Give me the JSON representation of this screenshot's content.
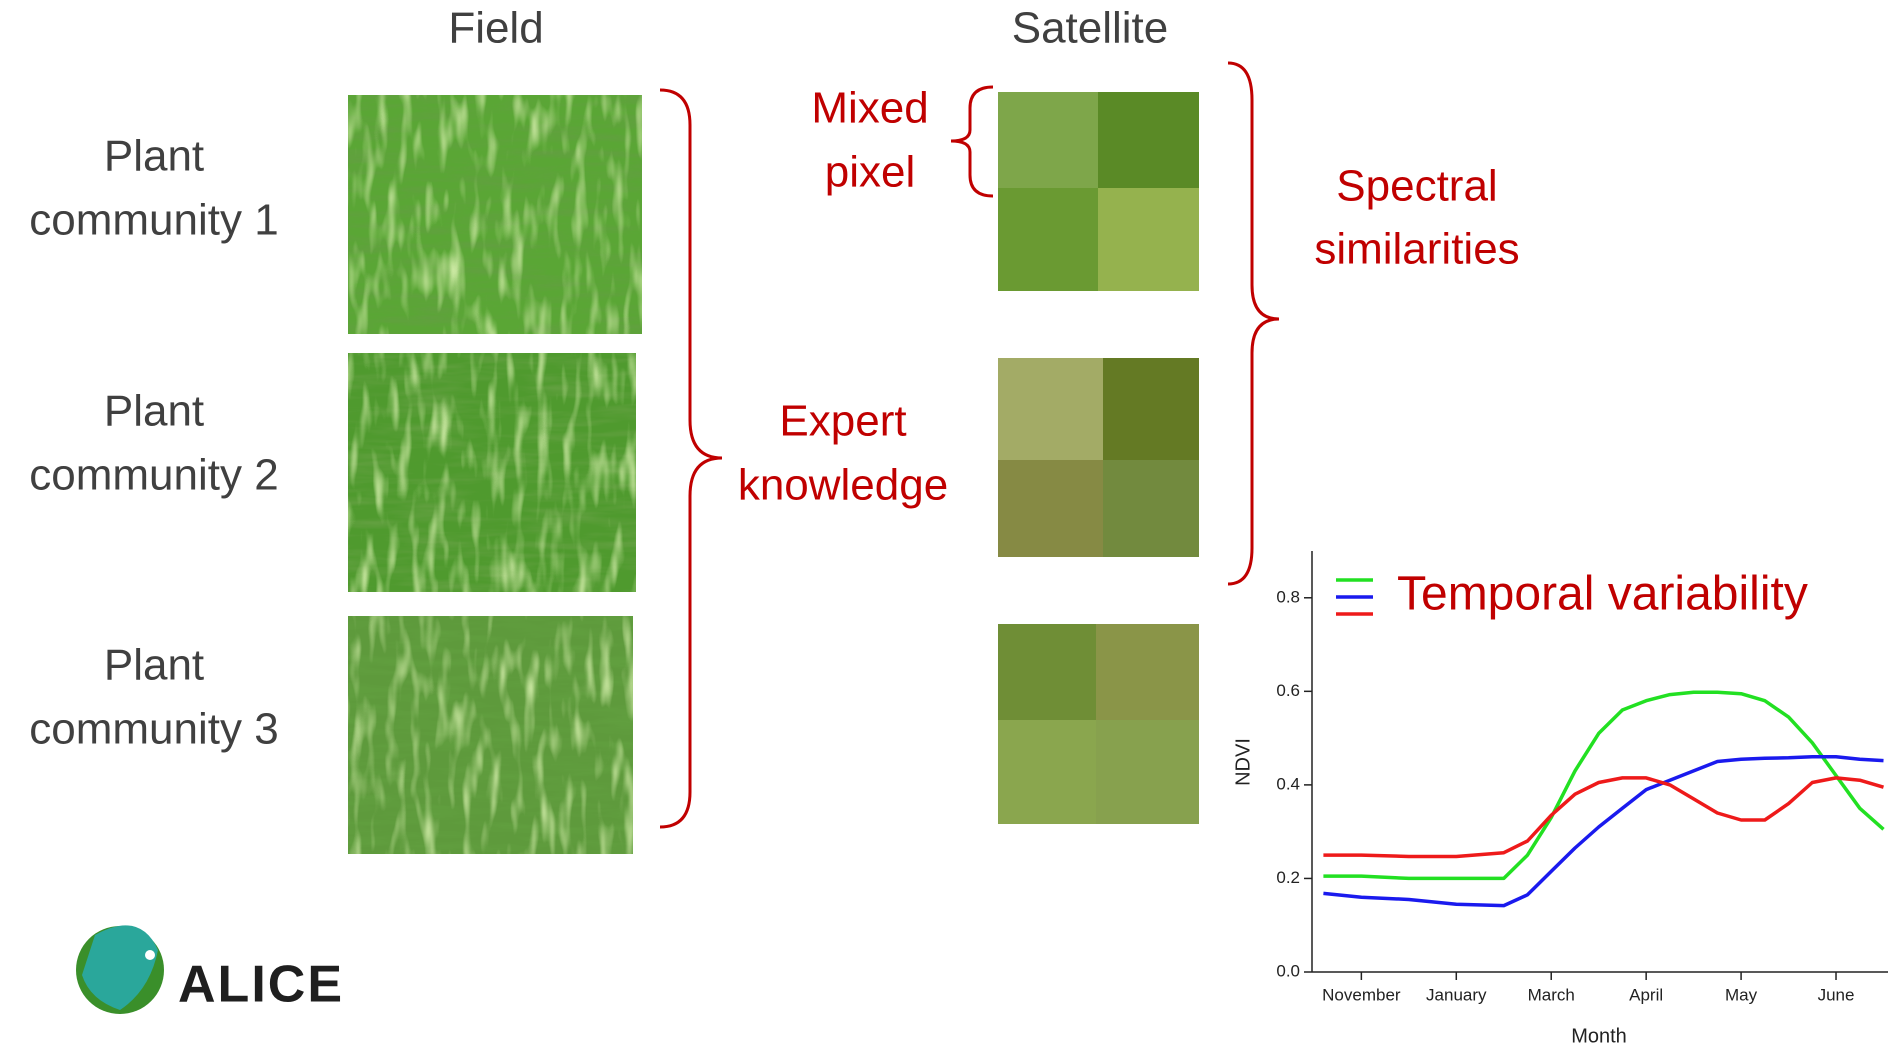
{
  "headers": {
    "field": "Field",
    "satellite": "Satellite"
  },
  "communities": [
    {
      "label": [
        "Plant",
        "community 1"
      ]
    },
    {
      "label": [
        "Plant",
        "community 2"
      ]
    },
    {
      "label": [
        "Plant",
        "community 3"
      ]
    }
  ],
  "annotations": {
    "expert": [
      "Expert",
      "knowledge"
    ],
    "mixed": [
      "Mixed",
      "pixel"
    ],
    "spectral": [
      "Spectral",
      "similarities"
    ]
  },
  "logo": {
    "text": "ALICE"
  },
  "chart_data": {
    "type": "line",
    "annotation": "Temporal variability",
    "xlabel": "Month",
    "ylabel": "NDVI",
    "xlim": [
      -0.52,
      5.53
    ],
    "ylim": [
      0,
      0.9
    ],
    "xticks": [
      {
        "value": 0,
        "label": "November"
      },
      {
        "value": 1,
        "label": "January"
      },
      {
        "value": 2,
        "label": "March"
      },
      {
        "value": 3,
        "label": "April"
      },
      {
        "value": 4,
        "label": "May"
      },
      {
        "value": 5,
        "label": "June"
      }
    ],
    "yticks": [
      {
        "value": 0,
        "label": "0.0"
      },
      0.2,
      0.4,
      0.6,
      0.8
    ],
    "x": [
      -0.4,
      0,
      0.5,
      1,
      1.5,
      1.75,
      2,
      2.25,
      2.5,
      2.75,
      3,
      3.25,
      3.5,
      3.75,
      4,
      4.25,
      4.5,
      4.75,
      5,
      5.25,
      5.5
    ],
    "series": [
      {
        "color": "#22e022",
        "values": [
          0.205,
          0.205,
          0.2,
          0.2,
          0.2,
          0.25,
          0.33,
          0.43,
          0.51,
          0.56,
          0.58,
          0.593,
          0.598,
          0.598,
          0.595,
          0.58,
          0.545,
          0.49,
          0.42,
          0.35,
          0.305
        ]
      },
      {
        "color": "#1a1aee",
        "values": [
          0.168,
          0.16,
          0.155,
          0.145,
          0.142,
          0.165,
          0.215,
          0.265,
          0.31,
          0.35,
          0.39,
          0.41,
          0.43,
          0.45,
          0.455,
          0.457,
          0.458,
          0.46,
          0.46,
          0.455,
          0.452
        ]
      },
      {
        "color": "#ee1a1a",
        "values": [
          0.25,
          0.25,
          0.247,
          0.247,
          0.255,
          0.28,
          0.335,
          0.38,
          0.405,
          0.415,
          0.415,
          0.4,
          0.37,
          0.34,
          0.325,
          0.325,
          0.36,
          0.405,
          0.415,
          0.41,
          0.395
        ]
      }
    ]
  }
}
